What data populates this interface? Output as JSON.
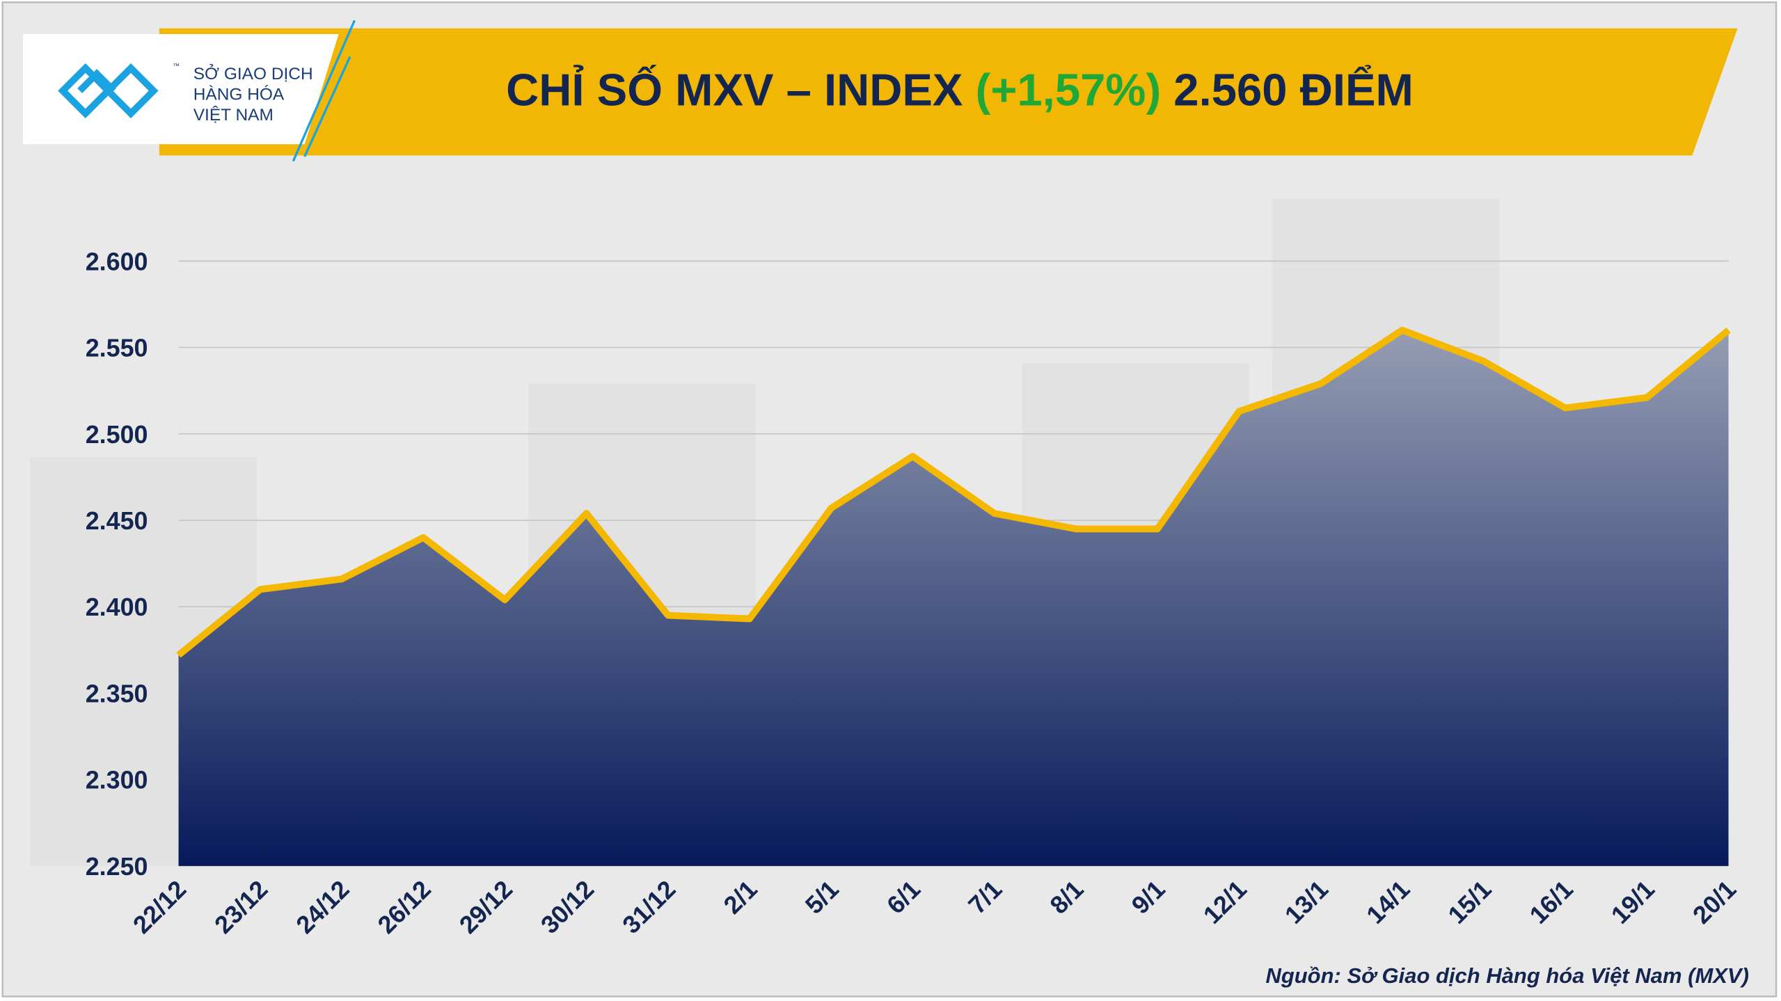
{
  "logo": {
    "tm": "™",
    "line1": "SỞ GIAO DỊCH",
    "line2": "HÀNG HÓA",
    "line3": "VIỆT NAM"
  },
  "chart_data": {
    "type": "area",
    "title": "CHỈ SỐ MXV – INDEX",
    "title_change": "(+1,57%)",
    "title_value": "2.560 ĐIỂM",
    "source": "Nguồn: Sở Giao dịch Hàng hóa Việt Nam (MXV)",
    "categories": [
      "22/12",
      "23/12",
      "24/12",
      "26/12",
      "29/12",
      "30/12",
      "31/12",
      "2/1",
      "5/1",
      "6/1",
      "7/1",
      "8/1",
      "9/1",
      "12/1",
      "13/1",
      "14/1",
      "15/1",
      "16/1",
      "19/1",
      "20/1"
    ],
    "values": [
      2372,
      2410,
      2416,
      2440,
      2404,
      2454,
      2395,
      2393,
      2457,
      2487,
      2454,
      2445,
      2445,
      2513,
      2529,
      2560,
      2542,
      2515,
      2521,
      2560
    ],
    "color": "#f5b800",
    "fill_top": "#959db3",
    "fill_bottom": "#061a5a",
    "grid": true,
    "ylim": [
      2250,
      2600
    ],
    "yticks": [
      {
        "value": 2250,
        "label": "2.250"
      },
      {
        "value": 2300,
        "label": "2.300"
      },
      {
        "value": 2350,
        "label": "2.350"
      },
      {
        "value": 2400,
        "label": "2.400"
      },
      {
        "value": 2450,
        "label": "2.450"
      },
      {
        "value": 2500,
        "label": "2.500"
      },
      {
        "value": 2550,
        "label": "2.550"
      },
      {
        "value": 2600,
        "label": "2.600"
      }
    ]
  }
}
